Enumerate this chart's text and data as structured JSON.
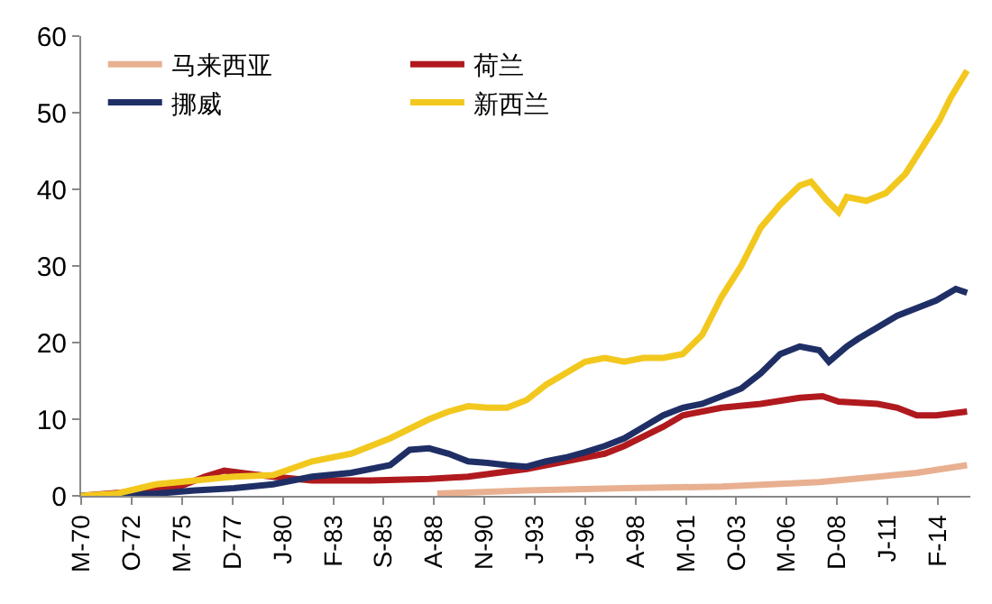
{
  "chart_data": {
    "type": "line",
    "xlim": [
      "1970-03",
      "2015-10"
    ],
    "ylim": [
      0,
      60
    ],
    "yticks": [
      0,
      10,
      20,
      30,
      40,
      50,
      60
    ],
    "xticks": [
      {
        "value": "1970-03",
        "label": "M-70"
      },
      {
        "value": "1972-10",
        "label": "O-72"
      },
      {
        "value": "1975-05",
        "label": "M-75"
      },
      {
        "value": "1977-12",
        "label": "D-77"
      },
      {
        "value": "1980-07",
        "label": "J-80"
      },
      {
        "value": "1983-02",
        "label": "F-83"
      },
      {
        "value": "1985-09",
        "label": "S-85"
      },
      {
        "value": "1988-04",
        "label": "A-88"
      },
      {
        "value": "1990-11",
        "label": "N-90"
      },
      {
        "value": "1993-06",
        "label": "J-93"
      },
      {
        "value": "1996-01",
        "label": "J-96"
      },
      {
        "value": "1998-08",
        "label": "A-98"
      },
      {
        "value": "2001-03",
        "label": "M-01"
      },
      {
        "value": "2003-10",
        "label": "O-03"
      },
      {
        "value": "2006-05",
        "label": "M-06"
      },
      {
        "value": "2008-12",
        "label": "D-08"
      },
      {
        "value": "2011-07",
        "label": "J-11"
      },
      {
        "value": "2014-02",
        "label": "F-14"
      }
    ],
    "legend": "top left",
    "marker": "none",
    "line_style": "solid",
    "series": [
      {
        "name": "马来西亚",
        "color": "#e8b090",
        "x": [
          "1988-06",
          "1993-01",
          "1998-01",
          "2003-01",
          "2008-01",
          "2011-01",
          "2013-01",
          "2015-08"
        ],
        "values": [
          0.3,
          0.7,
          1,
          1.2,
          1.8,
          2.5,
          3,
          4
        ]
      },
      {
        "name": "荷兰",
        "color": "#b01a1e",
        "x": [
          "1970-03",
          "1975-01",
          "1976-07",
          "1977-07",
          "1979-01",
          "1980-01",
          "1982-01",
          "1985-01",
          "1988-01",
          "1990-01",
          "1993-01",
          "1995-01",
          "1997-01",
          "1998-01",
          "2000-01",
          "2001-01",
          "2003-01",
          "2005-01",
          "2007-01",
          "2008-03",
          "2009-01",
          "2011-01",
          "2012-01",
          "2013-01",
          "2014-01",
          "2015-08"
        ],
        "values": [
          0,
          1,
          2.5,
          3.3,
          2.8,
          2.5,
          2,
          2,
          2.2,
          2.5,
          3.5,
          4.5,
          5.5,
          6.5,
          9,
          10.5,
          11.5,
          12,
          12.8,
          13,
          12.3,
          12,
          11.5,
          10.5,
          10.5,
          11
        ]
      },
      {
        "name": "挪威",
        "color": "#1f2f66",
        "x": [
          "1970-03",
          "1974-01",
          "1976-01",
          "1978-01",
          "1980-01",
          "1982-01",
          "1984-01",
          "1986-01",
          "1987-01",
          "1988-01",
          "1989-01",
          "1990-01",
          "1991-01",
          "1992-01",
          "1993-01",
          "1994-01",
          "1995-01",
          "1996-01",
          "1997-01",
          "1998-01",
          "1999-01",
          "2000-01",
          "2001-01",
          "2002-01",
          "2003-01",
          "2004-01",
          "2005-01",
          "2006-01",
          "2007-01",
          "2008-01",
          "2008-07",
          "2009-06",
          "2010-01",
          "2011-01",
          "2012-01",
          "2013-01",
          "2014-01",
          "2015-01",
          "2015-08"
        ],
        "values": [
          0,
          0.3,
          0.7,
          1,
          1.5,
          2.5,
          3,
          4,
          6,
          6.2,
          5.5,
          4.5,
          4.3,
          4,
          3.8,
          4.5,
          5,
          5.7,
          6.5,
          7.5,
          9,
          10.5,
          11.5,
          12,
          13,
          14,
          16,
          18.5,
          19.5,
          19,
          17.5,
          19.5,
          20.5,
          22,
          23.5,
          24.5,
          25.5,
          27,
          26.5
        ]
      },
      {
        "name": "新西兰",
        "color": "#f2c81e",
        "x": [
          "1970-03",
          "1972-01",
          "1974-01",
          "1976-01",
          "1978-01",
          "1980-01",
          "1982-01",
          "1984-01",
          "1986-01",
          "1988-01",
          "1989-01",
          "1990-01",
          "1991-01",
          "1992-01",
          "1993-01",
          "1994-01",
          "1995-01",
          "1996-01",
          "1997-01",
          "1998-01",
          "1999-01",
          "2000-01",
          "2001-01",
          "2002-01",
          "2003-01",
          "2004-01",
          "2005-01",
          "2006-01",
          "2007-01",
          "2007-08",
          "2008-06",
          "2009-01",
          "2009-06",
          "2010-06",
          "2011-06",
          "2012-06",
          "2013-06",
          "2014-03",
          "2014-10",
          "2015-08"
        ],
        "values": [
          0,
          0.3,
          1.5,
          2,
          2.5,
          2.7,
          4.5,
          5.5,
          7.5,
          10,
          11,
          11.7,
          11.5,
          11.5,
          12.5,
          14.5,
          16,
          17.5,
          18,
          17.5,
          18,
          18,
          18.5,
          21,
          26,
          30,
          35,
          38,
          40.5,
          41,
          38.5,
          37,
          39,
          38.5,
          39.5,
          42,
          46,
          49,
          52,
          55.5
        ]
      }
    ]
  }
}
